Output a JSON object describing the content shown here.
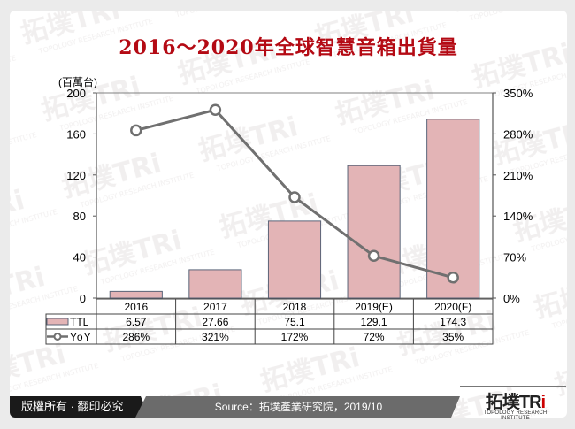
{
  "title": "2016～2020年全球智慧音箱出貨量",
  "unit_label": "(百萬台)",
  "footer": {
    "copyright": "版權所有 · 翻印必究",
    "source": "Source：拓墣產業研究院，2019/10",
    "logo_text": "拓墣TRi",
    "logo_sub": "TOPOLOGY RESEARCH INSTITUTE",
    "watermark": "拓墣TRi TOPOLOGY RESEARCH INSTITUTE"
  },
  "colors": {
    "title": "#b40a14",
    "bar_fill": "#e3b4b6",
    "bar_stroke": "#5a6478",
    "line": "#707070",
    "background": "#ebebeb"
  },
  "chart_data": {
    "type": "bar",
    "title": "2016～2020年全球智慧音箱出貨量",
    "categories": [
      "2016",
      "2017",
      "2018",
      "2019(E)",
      "2020(F)"
    ],
    "series": [
      {
        "name": "TTL",
        "type": "bar",
        "axis": "left",
        "values": [
          6.57,
          27.66,
          75.1,
          129.1,
          174.3
        ],
        "labels": [
          "6.57",
          "27.66",
          "75.1",
          "129.1",
          "174.3"
        ]
      },
      {
        "name": "YoY",
        "type": "line",
        "axis": "right",
        "values": [
          286,
          321,
          172,
          72,
          35
        ],
        "labels": [
          "286%",
          "321%",
          "172%",
          "72%",
          "35%"
        ]
      }
    ],
    "ylabel": "(百萬台)",
    "ylim": [
      0,
      200
    ],
    "yticks": [
      "0",
      "40",
      "80",
      "120",
      "160",
      "200"
    ],
    "y2lim": [
      0,
      350
    ],
    "y2ticks": [
      "0%",
      "70%",
      "140%",
      "210%",
      "280%",
      "350%"
    ],
    "grid": false,
    "legend": "data-table"
  }
}
